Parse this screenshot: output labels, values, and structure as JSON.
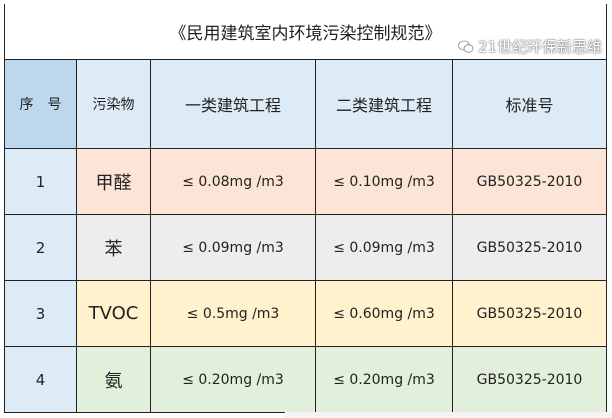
{
  "title": "《民用建筑室内环境污染控制规范》",
  "headers": {
    "seq": "序　号",
    "pollutant": "污染物",
    "class1": "一类建筑工程",
    "class2": "二类建筑工程",
    "standard": "标准号"
  },
  "rows": [
    {
      "no": "1",
      "pollutant": "甲醛",
      "class1": "≤ 0.08mg /m3",
      "class2": "≤ 0.10mg /m3",
      "standard": "GB50325-2010"
    },
    {
      "no": "2",
      "pollutant": "苯",
      "class1": "≤ 0.09mg /m3",
      "class2": "≤ 0.09mg /m3",
      "standard": "GB50325-2010"
    },
    {
      "no": "3",
      "pollutant": "TVOC",
      "class1": "≤ 0.5mg /m3",
      "class2": "≤ 0.60mg /m3",
      "standard": "GB50325-2010"
    },
    {
      "no": "4",
      "pollutant": "氨",
      "class1": "≤ 0.20mg /m3",
      "class2": "≤ 0.20mg /m3",
      "standard": "GB50325-2010"
    }
  ],
  "colors": {
    "header_seq": "#bdd7ee",
    "header": "#ddebf7",
    "row1": "#fce4d6",
    "row2": "#ededed",
    "row3": "#fff2cc",
    "row4": "#e2efda"
  },
  "watermark": {
    "icon": "wechat-icon",
    "text": "21世纪环保新思维"
  }
}
